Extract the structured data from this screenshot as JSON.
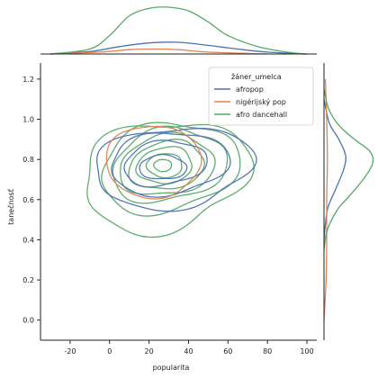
{
  "chart_data": {
    "type": "kde-jointplot",
    "xlabel": "popularita",
    "ylabel": "tanečnosť",
    "xlim": [
      -35,
      105
    ],
    "ylim": [
      -0.1,
      1.28
    ],
    "x_ticks": [
      -20,
      0,
      20,
      40,
      60,
      80,
      100
    ],
    "y_ticks": [
      0.0,
      0.2,
      0.4,
      0.6,
      0.8,
      1.0,
      1.2
    ],
    "x_tick_labels": [
      "-20",
      "0",
      "20",
      "40",
      "60",
      "80",
      "100"
    ],
    "y_tick_labels": [
      "0.0",
      "0.2",
      "0.4",
      "0.6",
      "0.8",
      "1.0",
      "1.2"
    ],
    "legend": {
      "title": "žáner_umelca",
      "placement": "top-right"
    },
    "series": [
      {
        "name": "afropop",
        "color": "#4c72b0",
        "contours": [
          {
            "cx": 32,
            "cy": 0.76,
            "rx": 40,
            "ry": 0.2,
            "wobble": 0.07,
            "phase": 0.4,
            "tilt": 0.03
          },
          {
            "cx": 30,
            "cy": 0.78,
            "rx": 30,
            "ry": 0.155,
            "wobble": 0.06,
            "phase": 1.3,
            "tilt": 0.02
          },
          {
            "cx": 28,
            "cy": 0.78,
            "rx": 21,
            "ry": 0.11,
            "wobble": 0.06,
            "phase": 2.1,
            "tilt": 0.02
          },
          {
            "cx": 27,
            "cy": 0.76,
            "rx": 12,
            "ry": 0.06,
            "wobble": 0.05,
            "phase": 2.9,
            "tilt": 0.0
          }
        ],
        "x_density": [
          [
            -30,
            0.0
          ],
          [
            -10,
            0.04
          ],
          [
            5,
            0.12
          ],
          [
            20,
            0.18
          ],
          [
            35,
            0.19
          ],
          [
            50,
            0.14
          ],
          [
            65,
            0.08
          ],
          [
            80,
            0.03
          ],
          [
            100,
            0.0
          ]
        ],
        "y_density": [
          [
            0.4,
            0.0
          ],
          [
            0.55,
            0.05
          ],
          [
            0.65,
            0.17
          ],
          [
            0.75,
            0.29
          ],
          [
            0.82,
            0.32
          ],
          [
            0.9,
            0.22
          ],
          [
            0.98,
            0.08
          ],
          [
            1.1,
            0.0
          ]
        ]
      },
      {
        "name": "nigérijský pop",
        "color": "#dd8452",
        "contours": [
          {
            "cx": 22,
            "cy": 0.79,
            "rx": 24,
            "ry": 0.18,
            "wobble": 0.03,
            "phase": 0.2,
            "tilt": 0.0
          }
        ],
        "x_density": [
          [
            -30,
            0.0
          ],
          [
            -5,
            0.03
          ],
          [
            10,
            0.07
          ],
          [
            22,
            0.08
          ],
          [
            35,
            0.07
          ],
          [
            50,
            0.03
          ],
          [
            80,
            0.0
          ]
        ],
        "y_density": [
          [
            0.0,
            0.0
          ],
          [
            0.2,
            0.03
          ],
          [
            0.4,
            0.04
          ],
          [
            0.6,
            0.04
          ],
          [
            0.8,
            0.05
          ],
          [
            1.0,
            0.04
          ],
          [
            1.2,
            0.02
          ]
        ]
      },
      {
        "name": "afro dancehall",
        "color": "#55a868",
        "contours": [
          {
            "cx": 28,
            "cy": 0.72,
            "rx": 42,
            "ry": 0.27,
            "wobble": 0.09,
            "phase": 0.9,
            "tilt": 0.05
          },
          {
            "cx": 30,
            "cy": 0.76,
            "rx": 35,
            "ry": 0.22,
            "wobble": 0.07,
            "phase": 1.7,
            "tilt": 0.04
          },
          {
            "cx": 30,
            "cy": 0.77,
            "rx": 29,
            "ry": 0.18,
            "wobble": 0.07,
            "phase": 2.4,
            "tilt": 0.03
          },
          {
            "cx": 29,
            "cy": 0.77,
            "rx": 24,
            "ry": 0.15,
            "wobble": 0.06,
            "phase": 3.1,
            "tilt": 0.02
          },
          {
            "cx": 29,
            "cy": 0.77,
            "rx": 19,
            "ry": 0.12,
            "wobble": 0.05,
            "phase": 3.8,
            "tilt": 0.02
          },
          {
            "cx": 28,
            "cy": 0.77,
            "rx": 14,
            "ry": 0.09,
            "wobble": 0.05,
            "phase": 4.4,
            "tilt": 0.01
          },
          {
            "cx": 28,
            "cy": 0.77,
            "rx": 9,
            "ry": 0.06,
            "wobble": 0.04,
            "phase": 5.1,
            "tilt": 0.0
          },
          {
            "cx": 27,
            "cy": 0.77,
            "rx": 4.5,
            "ry": 0.03,
            "wobble": 0.03,
            "phase": 5.6,
            "tilt": 0.0
          }
        ],
        "x_density": [
          [
            -30,
            0.0
          ],
          [
            -10,
            0.08
          ],
          [
            0,
            0.3
          ],
          [
            10,
            0.62
          ],
          [
            20,
            0.74
          ],
          [
            30,
            0.76
          ],
          [
            40,
            0.7
          ],
          [
            50,
            0.52
          ],
          [
            60,
            0.3
          ],
          [
            75,
            0.12
          ],
          [
            90,
            0.03
          ],
          [
            100,
            0.0
          ]
        ],
        "y_density": [
          [
            0.35,
            0.0
          ],
          [
            0.45,
            0.05
          ],
          [
            0.55,
            0.2
          ],
          [
            0.62,
            0.38
          ],
          [
            0.7,
            0.58
          ],
          [
            0.78,
            0.72
          ],
          [
            0.84,
            0.68
          ],
          [
            0.9,
            0.45
          ],
          [
            0.97,
            0.22
          ],
          [
            1.05,
            0.07
          ],
          [
            1.15,
            0.0
          ]
        ]
      }
    ]
  }
}
